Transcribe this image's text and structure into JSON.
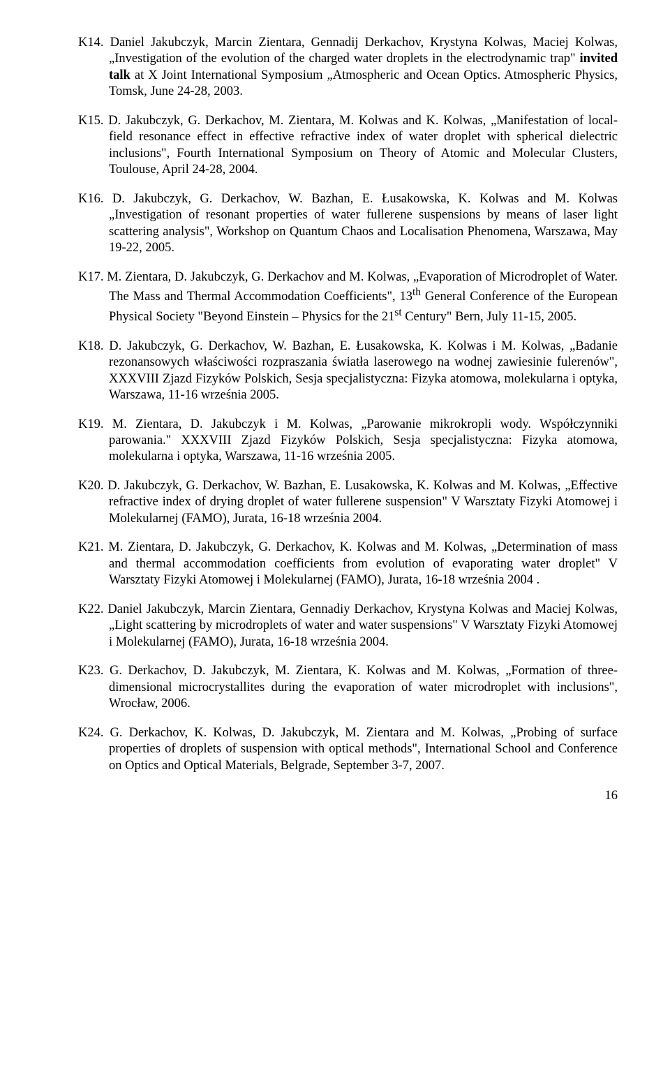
{
  "entries": [
    {
      "id": "K14",
      "label": "K14.",
      "prefix": "Daniel Jakubczyk, Marcin Zientara, Gennadij Derkachov, Krystyna Kolwas, Maciej Kolwas, „Investigation of the evolution of the charged water droplets in the electrodynamic trap\" ",
      "bold": "invited talk",
      "suffix": " at X Joint International Symposium „Atmospheric and Ocean Optics. Atmospheric Physics, Tomsk, June 24-28, 2003."
    },
    {
      "id": "K15",
      "label": "K15.",
      "text": "D. Jakubczyk, G. Derkachov, M. Zientara, M. Kolwas and K. Kolwas, „Manifestation of local-field resonance effect in effective refractive index of water droplet with spherical dielectric inclusions\", Fourth International Symposium on Theory of Atomic and Molecular Clusters, Toulouse, April 24-28, 2004."
    },
    {
      "id": "K16",
      "label": "K16.",
      "text": "D. Jakubczyk, G. Derkachov, W. Bazhan, E. Łusakowska, K. Kolwas and M. Kolwas „Investigation of resonant properties of water fullerene suspensions by means of laser light scattering analysis\", Workshop on Quantum Chaos and Localisation Phenomena, Warszawa, May 19-22, 2005."
    },
    {
      "id": "K17",
      "label": "K17.",
      "html": "M. Zientara, D. Jakubczyk, G. Derkachov and M. Kolwas, „Evaporation of Microdroplet of Water. The Mass and Thermal Accommodation Coefficients\", 13<sup>th</sup> General Conference of the European Physical Society \"Beyond Einstein – Physics for the 21<sup>st</sup> Century\" Bern, July 11-15, 2005."
    },
    {
      "id": "K18",
      "label": "K18.",
      "text": "D. Jakubczyk, G. Derkachov, W. Bazhan, E. Łusakowska, K. Kolwas i M. Kolwas, „Badanie rezonansowych właściwości rozpraszania światła laserowego na wodnej zawiesinie fulerenów\", XXXVIII Zjazd Fizyków Polskich, Sesja specjalistyczna: Fizyka atomowa, molekularna i optyka, Warszawa, 11-16 września 2005."
    },
    {
      "id": "K19",
      "label": "K19.",
      "text": "M. Zientara, D. Jakubczyk i M. Kolwas, „Parowanie mikrokropli wody. Współczynniki parowania.\" XXXVIII Zjazd Fizyków Polskich, Sesja specjalistyczna: Fizyka atomowa, molekularna i optyka, Warszawa, 11-16 września 2005."
    },
    {
      "id": "K20",
      "label": "K20.",
      "text": "D. Jakubczyk, G. Derkachov, W. Bazhan, E. Lusakowska, K. Kolwas and M. Kolwas, „Effective refractive index of drying droplet of water fullerene suspension\" V Warsztaty Fizyki Atomowej i Molekularnej (FAMO), Jurata, 16-18 września 2004."
    },
    {
      "id": "K21",
      "label": "K21.",
      "text": "M. Zientara, D. Jakubczyk, G. Derkachov, K. Kolwas and M. Kolwas, „Determination of mass and thermal accommodation coefficients from evolution of evaporating water droplet\" V Warsztaty Fizyki Atomowej i Molekularnej (FAMO), Jurata, 16-18 września 2004 ."
    },
    {
      "id": "K22",
      "label": "K22.",
      "text": "Daniel Jakubczyk, Marcin Zientara, Gennadiy Derkachov, Krystyna Kolwas and Maciej Kolwas, „Light scattering by microdroplets of water and water suspensions\" V Warsztaty Fizyki Atomowej i Molekularnej (FAMO), Jurata, 16-18 września 2004."
    },
    {
      "id": "K23",
      "label": "K23.",
      "text": "G. Derkachov, D. Jakubczyk, M. Zientara, K. Kolwas and M. Kolwas, „Formation of three-dimensional microcrystallites during the evaporation of water microdroplet with inclusions\", Wrocław, 2006."
    },
    {
      "id": "K24",
      "label": "K24.",
      "text": "G. Derkachov, K. Kolwas, D. Jakubczyk, M. Zientara and M. Kolwas, „Probing of surface properties of droplets of suspension with optical methods\", International School and Conference on Optics and Optical Materials, Belgrade, September 3-7, 2007."
    }
  ],
  "pageNumber": "16"
}
